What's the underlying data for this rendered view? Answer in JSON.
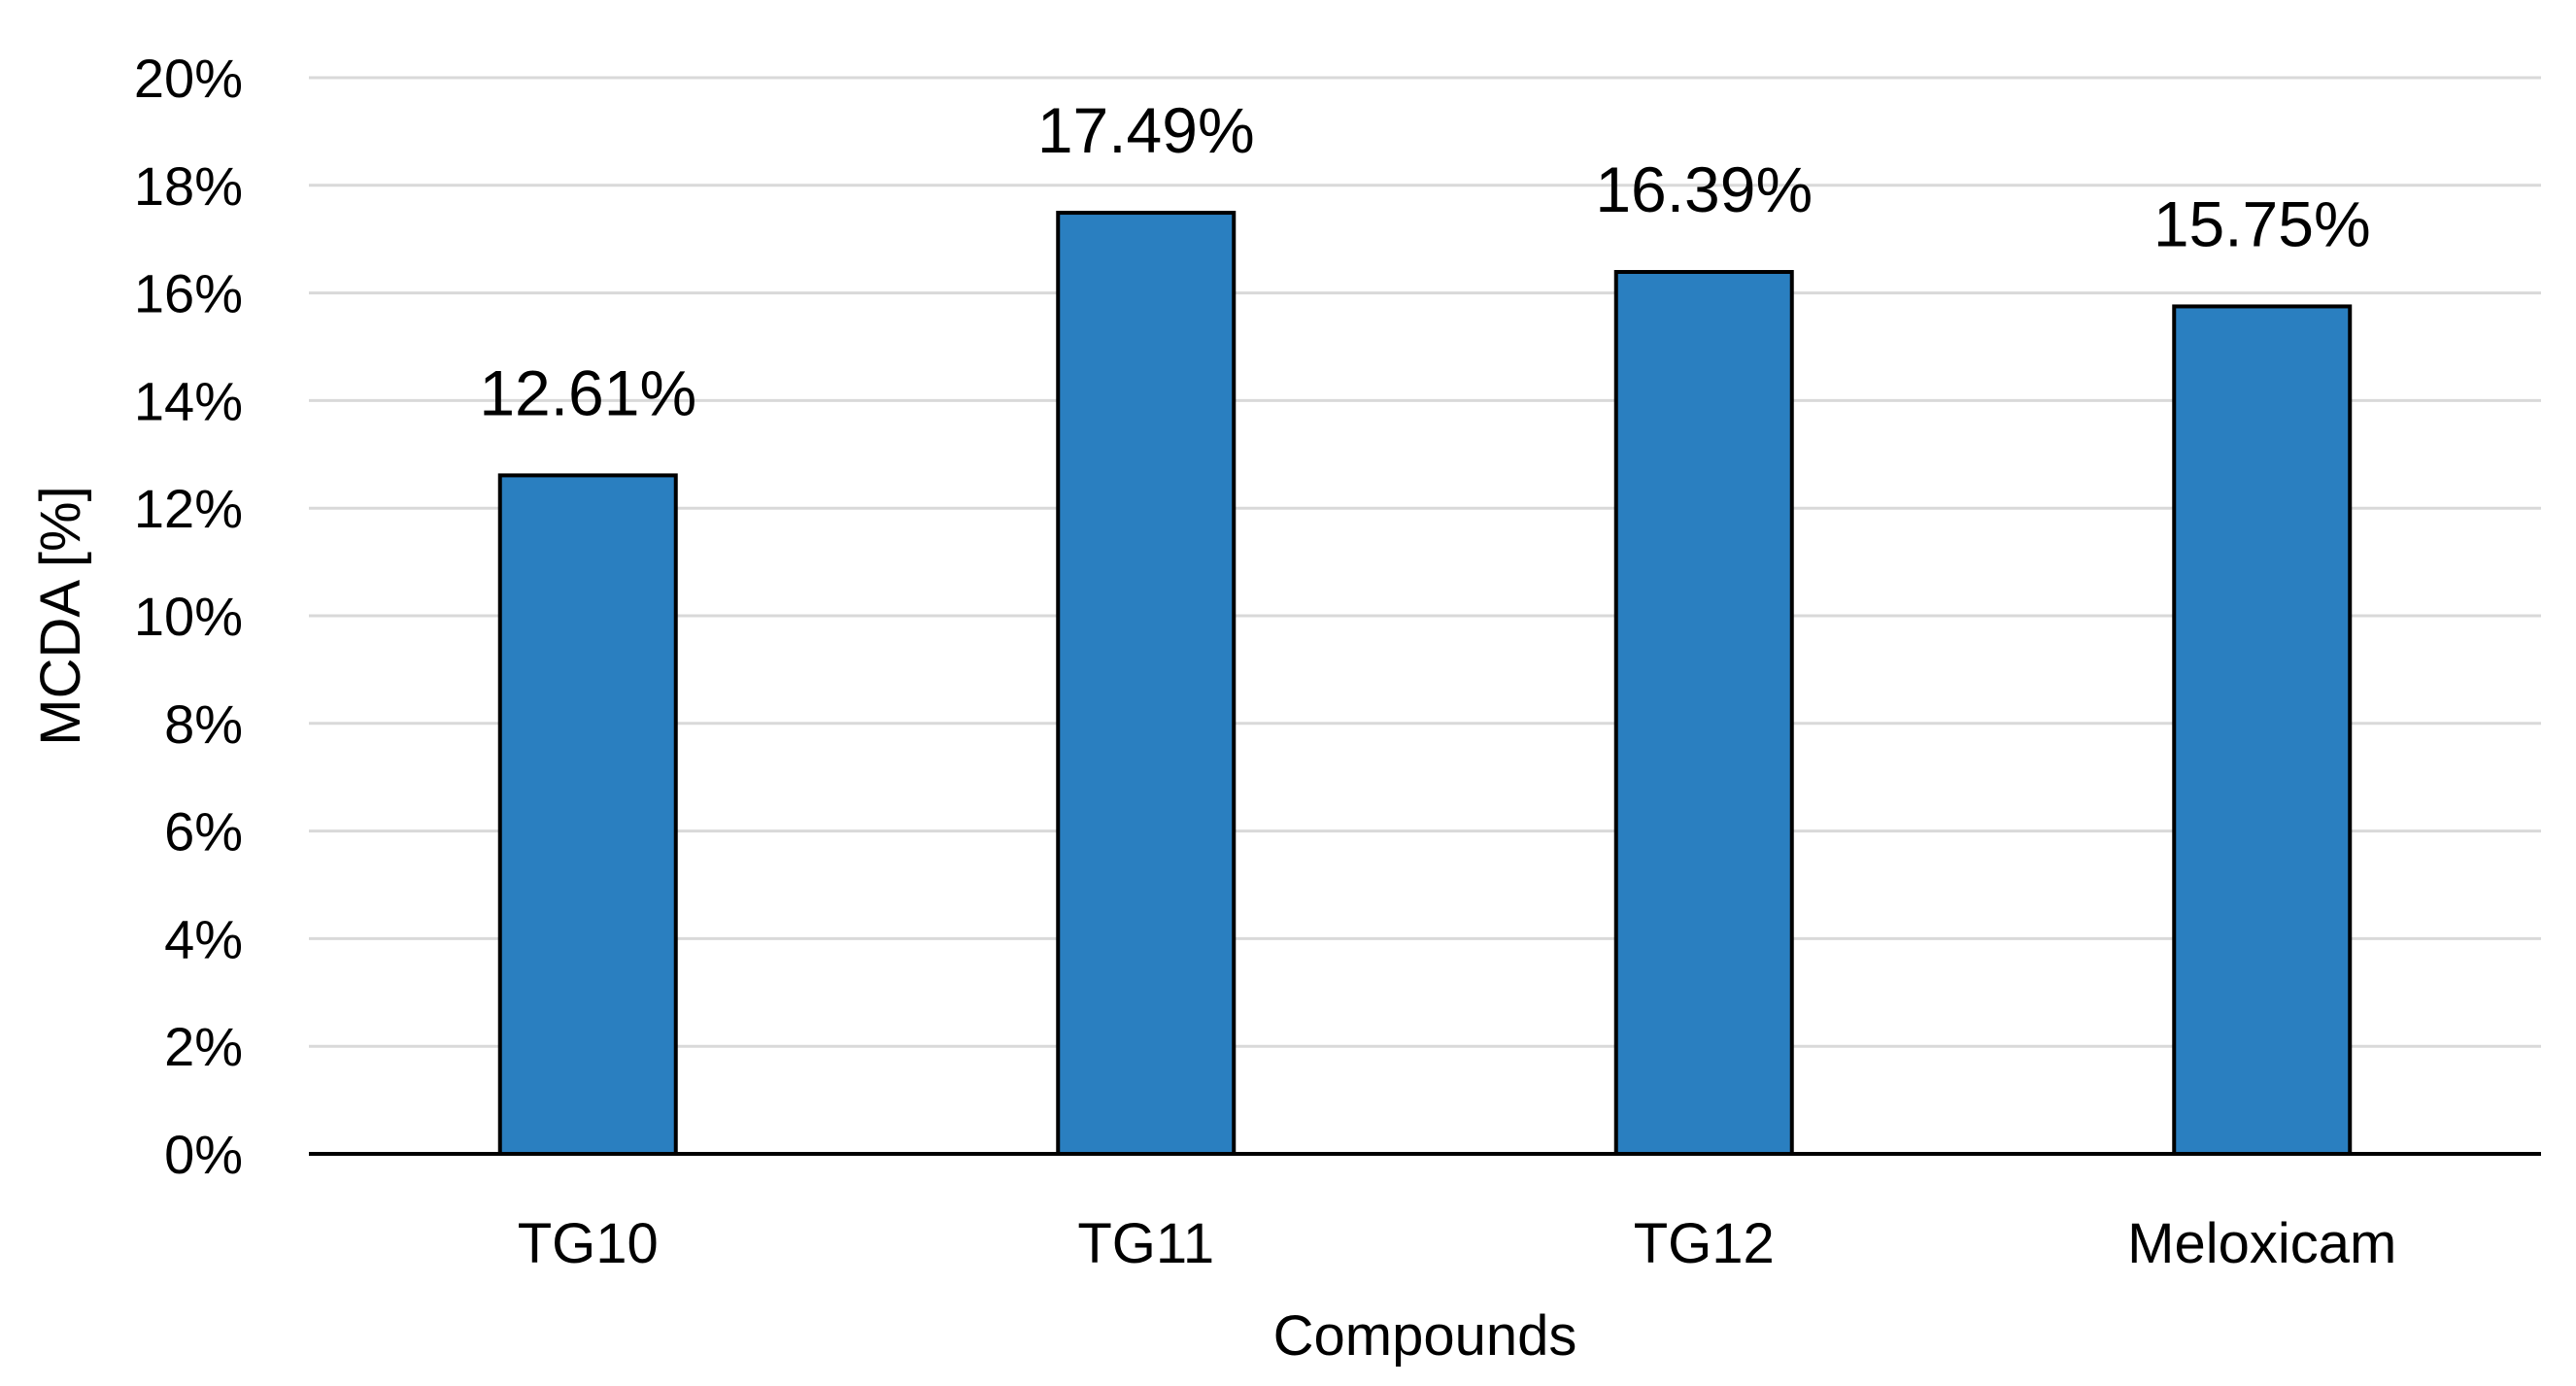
{
  "chart_data": {
    "type": "bar",
    "title": "",
    "xlabel": "Compounds",
    "ylabel": "MCDA [%]",
    "categories": [
      "TG10",
      "TG11",
      "TG12",
      "Meloxicam"
    ],
    "values": [
      12.61,
      17.49,
      16.39,
      15.75
    ],
    "value_labels": [
      "12.61%",
      "17.49%",
      "16.39%",
      "15.75%"
    ],
    "ylim": [
      0,
      20
    ],
    "yticks": [
      0,
      2,
      4,
      6,
      8,
      10,
      12,
      14,
      16,
      18,
      20
    ],
    "ytick_labels": [
      "0%",
      "2%",
      "4%",
      "6%",
      "8%",
      "10%",
      "12%",
      "14%",
      "16%",
      "18%",
      "20%"
    ],
    "grid": true,
    "legend": "none",
    "colors": {
      "bar_fill": "#2a7fc0",
      "bar_stroke": "#000000",
      "grid": "#d9d9d9",
      "axis": "#000000"
    }
  }
}
